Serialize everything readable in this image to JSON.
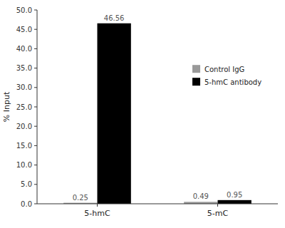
{
  "chart_data": {
    "type": "bar",
    "categories": [
      "5-hmC",
      "5-mC"
    ],
    "series": [
      {
        "name": "Control IgG",
        "color": "#999999",
        "values": [
          0.25,
          0.49
        ]
      },
      {
        "name": "5-hmC antibody",
        "color": "#000000",
        "values": [
          46.56,
          0.95
        ]
      }
    ],
    "ylabel": "% Input",
    "ylim": [
      0,
      50.0
    ],
    "yticks": [
      {
        "value": 0.0,
        "label": "0.0"
      },
      {
        "value": 5.0,
        "label": "5.0"
      },
      {
        "value": 10.0,
        "label": "10.0"
      },
      {
        "value": 15.0,
        "label": "15.0"
      },
      {
        "value": 20.0,
        "label": "20.0"
      },
      {
        "value": 25.0,
        "label": "25.0"
      },
      {
        "value": 30.0,
        "label": "30.0"
      },
      {
        "value": 35.0,
        "label": "35.0"
      },
      {
        "value": 40.0,
        "label": "40.0"
      },
      {
        "value": 45.0,
        "label": "45.0"
      },
      {
        "value": 50.0,
        "label": "50.0"
      }
    ],
    "data_labels": true,
    "legend": "right",
    "grid": false
  }
}
